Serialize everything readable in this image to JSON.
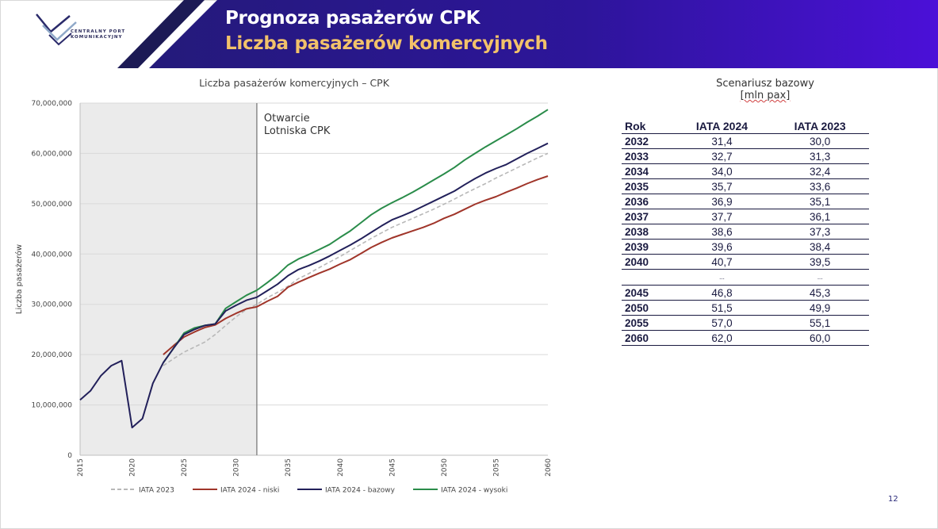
{
  "header": {
    "title": "Prognoza pasażerów CPK",
    "subtitle": "Liczba pasażerów komercyjnych",
    "logo_text": "CENTRALNY PORT KOMUNIKACYJNY",
    "colors": {
      "band": "#2a1690",
      "band_end": "#4b10d8",
      "subtitle": "#f2c26a"
    }
  },
  "chart_data": {
    "type": "line",
    "title": "Liczba pasażerów komercyjnych – CPK",
    "ylabel": "Liczba pasażerów",
    "xlabel": "",
    "xlim": [
      2015,
      2060
    ],
    "ylim": [
      0,
      70000000
    ],
    "yticks": [
      "0",
      "10,000,000",
      "20,000,000",
      "30,000,000",
      "40,000,000",
      "50,000,000",
      "60,000,000",
      "70,000,000"
    ],
    "xticks": [
      "2015",
      "2020",
      "2025",
      "2030",
      "2035",
      "2040",
      "2045",
      "2050",
      "2055",
      "2060"
    ],
    "grid": "horizontal",
    "legend_position": "bottom",
    "shaded_region": [
      2015,
      2032
    ],
    "annotation": "Otwarcie\nLotniska CPK",
    "series": [
      {
        "name": "IATA 2023",
        "color": "#b8b8b8",
        "dash": "dashed",
        "x": [
          2023,
          2024,
          2025,
          2026,
          2027,
          2028,
          2029,
          2030,
          2031,
          2032,
          2033,
          2034,
          2035,
          2036,
          2037,
          2038,
          2039,
          2040,
          2041,
          2042,
          2043,
          2044,
          2045,
          2046,
          2047,
          2048,
          2049,
          2050,
          2051,
          2052,
          2053,
          2054,
          2055,
          2056,
          2057,
          2058,
          2059,
          2060
        ],
        "values": [
          17800000,
          19200000,
          20500000,
          21500000,
          22500000,
          24000000,
          25800000,
          27500000,
          29000000,
          30000000,
          31300000,
          32400000,
          33600000,
          35100000,
          36100000,
          37300000,
          38400000,
          39500000,
          40700000,
          41900000,
          43100000,
          44200000,
          45300000,
          46200000,
          47100000,
          48000000,
          48900000,
          49900000,
          50900000,
          52000000,
          53000000,
          54000000,
          55100000,
          56100000,
          57100000,
          58100000,
          59100000,
          60000000
        ]
      },
      {
        "name": "IATA 2024 - niski",
        "color": "#a0352a",
        "dash": "solid",
        "x": [
          2023,
          2024,
          2025,
          2026,
          2027,
          2028,
          2029,
          2030,
          2031,
          2032,
          2033,
          2034,
          2035,
          2036,
          2037,
          2038,
          2039,
          2040,
          2041,
          2042,
          2043,
          2044,
          2045,
          2046,
          2047,
          2048,
          2049,
          2050,
          2051,
          2052,
          2053,
          2054,
          2055,
          2056,
          2057,
          2058,
          2059,
          2060
        ],
        "values": [
          20000000,
          21800000,
          23500000,
          24500000,
          25400000,
          25900000,
          27200000,
          28200000,
          29100000,
          29500000,
          30600000,
          31600000,
          33400000,
          34400000,
          35300000,
          36200000,
          37000000,
          38000000,
          38900000,
          40100000,
          41300000,
          42300000,
          43200000,
          43900000,
          44600000,
          45300000,
          46100000,
          47100000,
          47900000,
          48900000,
          49900000,
          50700000,
          51400000,
          52300000,
          53100000,
          54000000,
          54800000,
          55500000
        ]
      },
      {
        "name": "IATA 2024 - bazowy",
        "color": "#22205a",
        "dash": "solid",
        "x": [
          2015,
          2016,
          2017,
          2018,
          2019,
          2020,
          2021,
          2022,
          2023,
          2024,
          2025,
          2026,
          2027,
          2028,
          2029,
          2030,
          2031,
          2032,
          2033,
          2034,
          2035,
          2036,
          2037,
          2038,
          2039,
          2040,
          2041,
          2042,
          2043,
          2044,
          2045,
          2046,
          2047,
          2048,
          2049,
          2050,
          2051,
          2052,
          2053,
          2054,
          2055,
          2056,
          2057,
          2058,
          2059,
          2060
        ],
        "values": [
          11000000,
          12800000,
          15800000,
          17800000,
          18800000,
          5500000,
          7300000,
          14300000,
          18400000,
          21300000,
          24000000,
          25000000,
          25800000,
          26100000,
          28700000,
          29800000,
          30800000,
          31400000,
          32700000,
          34000000,
          35700000,
          36900000,
          37700000,
          38600000,
          39600000,
          40700000,
          41800000,
          43000000,
          44300000,
          45600000,
          46800000,
          47600000,
          48500000,
          49500000,
          50500000,
          51500000,
          52500000,
          53800000,
          55000000,
          56100000,
          57000000,
          57800000,
          58900000,
          60000000,
          61000000,
          62000000
        ]
      },
      {
        "name": "IATA 2024 - wysoki",
        "color": "#2a8c4a",
        "dash": "solid",
        "x": [
          2023,
          2024,
          2025,
          2026,
          2027,
          2028,
          2029,
          2030,
          2031,
          2032,
          2033,
          2034,
          2035,
          2036,
          2037,
          2038,
          2039,
          2040,
          2041,
          2042,
          2043,
          2044,
          2045,
          2046,
          2047,
          2048,
          2049,
          2050,
          2051,
          2052,
          2053,
          2054,
          2055,
          2056,
          2057,
          2058,
          2059,
          2060
        ],
        "values": [
          18400000,
          21300000,
          24300000,
          25300000,
          25800000,
          26100000,
          29200000,
          30500000,
          31800000,
          32800000,
          34300000,
          35900000,
          37800000,
          39000000,
          39900000,
          40900000,
          41900000,
          43300000,
          44600000,
          46200000,
          47800000,
          49100000,
          50200000,
          51200000,
          52300000,
          53500000,
          54700000,
          55900000,
          57200000,
          58700000,
          60000000,
          61300000,
          62500000,
          63700000,
          64900000,
          66200000,
          67400000,
          68700000
        ]
      }
    ]
  },
  "table": {
    "title_line1": "Scenariusz bazowy",
    "title_line2": "[mln pax]",
    "headers": [
      "Rok",
      "IATA 2024",
      "IATA 2023"
    ],
    "rows": [
      [
        "2032",
        "31,4",
        "30,0"
      ],
      [
        "2033",
        "32,7",
        "31,3"
      ],
      [
        "2034",
        "34,0",
        "32,4"
      ],
      [
        "2035",
        "35,7",
        "33,6"
      ],
      [
        "2036",
        "36,9",
        "35,1"
      ],
      [
        "2037",
        "37,7",
        "36,1"
      ],
      [
        "2038",
        "38,6",
        "37,3"
      ],
      [
        "2039",
        "39,6",
        "38,4"
      ],
      [
        "2040",
        "40,7",
        "39,5"
      ],
      [
        "",
        "...",
        "..."
      ],
      [
        "2045",
        "46,8",
        "45,3"
      ],
      [
        "2050",
        "51,5",
        "49,9"
      ],
      [
        "2055",
        "57,0",
        "55,1"
      ],
      [
        "2060",
        "62,0",
        "60,0"
      ]
    ]
  },
  "page_number": "12"
}
